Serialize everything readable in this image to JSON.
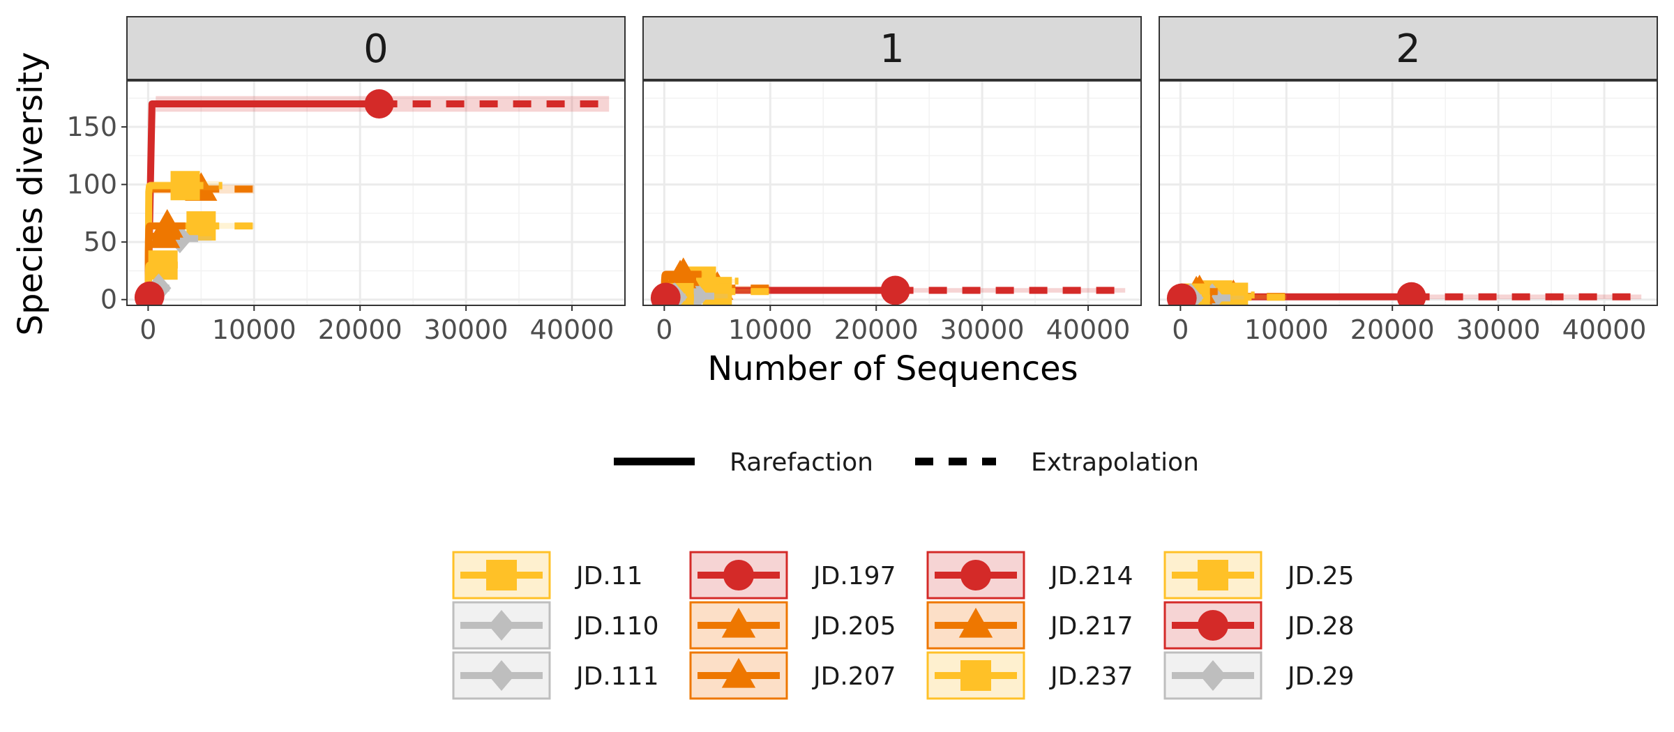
{
  "chart_data": {
    "type": "line",
    "facets": [
      "0",
      "1",
      "2"
    ],
    "xlabel": "Number of Sequences",
    "ylabel": "Species diversity",
    "xlim": [
      -2000,
      45000
    ],
    "ylim": [
      -5,
      190
    ],
    "x_ticks": [
      0,
      10000,
      20000,
      30000,
      40000
    ],
    "x_tick_labels": [
      "0",
      "10000",
      "20000",
      "30000",
      "40000"
    ],
    "y_ticks": [
      0,
      50,
      100,
      150
    ],
    "y_tick_labels": [
      "0",
      "50",
      "100",
      "150"
    ],
    "grid": true,
    "linetype_legend": [
      "Rarefaction",
      "Extrapolation"
    ],
    "legend_position": "bottom",
    "colors": {
      "JD.11": "#FFC127",
      "JD.110": "#BEBEBE",
      "JD.111": "#BEBEBE",
      "JD.197": "#D42A28",
      "JD.205": "#EE7700",
      "JD.207": "#EE7700",
      "JD.214": "#D42A28",
      "JD.217": "#EE7700",
      "JD.237": "#FFC127",
      "JD.25": "#FFC127",
      "JD.28": "#D42A28",
      "JD.29": "#BEBEBE"
    },
    "series": [
      {
        "name": "JD.11",
        "shape": "square",
        "n_obs": 1400,
        "x_max": 2800,
        "observed": [
          28,
          1.6,
          1.2
        ],
        "asymptote": [
          30,
          1.7,
          1.3
        ]
      },
      {
        "name": "JD.110",
        "shape": "diamond",
        "n_obs": 900,
        "x_max": 1800,
        "observed": [
          9,
          1.8,
          1.3
        ],
        "asymptote": [
          9,
          1.9,
          1.3
        ]
      },
      {
        "name": "JD.111",
        "shape": "diamond",
        "n_obs": 1000,
        "x_max": 2000,
        "observed": [
          10,
          2.0,
          1.4
        ],
        "asymptote": [
          10,
          2.1,
          1.4
        ]
      },
      {
        "name": "JD.197",
        "shape": "circle",
        "n_obs": 21800,
        "x_max": 43500,
        "observed": [
          170,
          8.0,
          2.4
        ],
        "asymptote": [
          170,
          8.0,
          2.4
        ]
      },
      {
        "name": "JD.205",
        "shape": "triangle",
        "n_obs": 5000,
        "x_max": 10000,
        "observed": [
          93,
          10,
          2.8
        ],
        "asymptote": [
          96,
          10,
          2.8
        ]
      },
      {
        "name": "JD.207",
        "shape": "triangle",
        "n_obs": 1500,
        "x_max": 3000,
        "observed": [
          53,
          20,
          6
        ],
        "asymptote": [
          55,
          20,
          6
        ]
      },
      {
        "name": "JD.214",
        "shape": "circle",
        "n_obs": 150,
        "x_max": 300,
        "observed": [
          3,
          2,
          1.3
        ],
        "asymptote": [
          3,
          2,
          1.3
        ]
      },
      {
        "name": "JD.217",
        "shape": "triangle",
        "n_obs": 1800,
        "x_max": 3600,
        "observed": [
          62,
          22,
          7
        ],
        "asymptote": [
          64,
          22,
          7
        ]
      },
      {
        "name": "JD.237",
        "shape": "square",
        "n_obs": 3500,
        "x_max": 7000,
        "observed": [
          98,
          16,
          4
        ],
        "asymptote": [
          99,
          16,
          4
        ]
      },
      {
        "name": "JD.25",
        "shape": "square",
        "n_obs": 5000,
        "x_max": 10000,
        "observed": [
          62,
          7,
          2
        ],
        "asymptote": [
          64,
          7,
          2
        ]
      },
      {
        "name": "JD.28",
        "shape": "circle",
        "n_obs": 100,
        "x_max": 200,
        "observed": [
          2,
          1.5,
          1.2
        ],
        "asymptote": [
          2,
          1.5,
          1.2
        ]
      },
      {
        "name": "JD.29",
        "shape": "diamond",
        "n_obs": 3000,
        "x_max": 6000,
        "observed": [
          52,
          3,
          1.4
        ],
        "asymptote": [
          53,
          3,
          1.4
        ]
      }
    ]
  }
}
